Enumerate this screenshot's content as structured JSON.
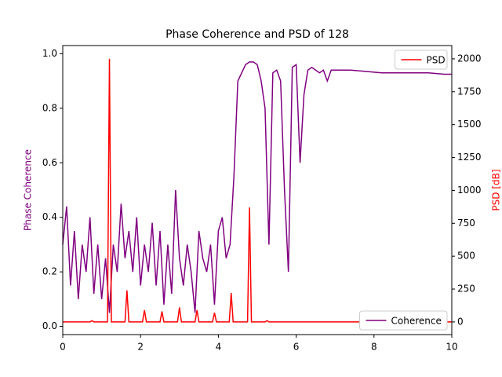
{
  "chart_data": {
    "type": "line",
    "title": "Phase Coherence and PSD of 128",
    "ylabel": "Phase Coherence",
    "y2label": "PSD [dB]",
    "ylabel_color": "#800080",
    "y2label_color": "#ff0000",
    "xlim": [
      0,
      10
    ],
    "xticks": [
      0,
      2,
      4,
      6,
      8,
      10
    ],
    "ylim": [
      -0.03,
      1.03
    ],
    "yticks": [
      {
        "value": 0,
        "label": "0.0"
      },
      0.2,
      0.4,
      0.6,
      0.8,
      {
        "value": 1,
        "label": "1.0"
      }
    ],
    "y2lim": [
      -96,
      2101
    ],
    "y2ticks": [
      0,
      250,
      500,
      750,
      1000,
      1250,
      1500,
      1750,
      2000
    ],
    "series": [
      {
        "name": "Coherence",
        "color": "#800080",
        "axis": "y",
        "legend": "lower right",
        "x": [
          0,
          0.1,
          0.2,
          0.3,
          0.4,
          0.5,
          0.6,
          0.7,
          0.8,
          0.9,
          1.0,
          1.1,
          1.2,
          1.3,
          1.4,
          1.5,
          1.6,
          1.7,
          1.8,
          1.9,
          2.0,
          2.1,
          2.2,
          2.3,
          2.4,
          2.5,
          2.6,
          2.7,
          2.8,
          2.9,
          3.0,
          3.1,
          3.2,
          3.3,
          3.4,
          3.5,
          3.6,
          3.7,
          3.8,
          3.9,
          4.0,
          4.1,
          4.2,
          4.3,
          4.4,
          4.5,
          4.6,
          4.7,
          4.8,
          4.9,
          5.0,
          5.1,
          5.2,
          5.3,
          5.4,
          5.5,
          5.6,
          5.7,
          5.8,
          5.9,
          6.0,
          6.1,
          6.2,
          6.3,
          6.4,
          6.5,
          6.6,
          6.7,
          6.8,
          6.9,
          7.0,
          7.4,
          7.8,
          8.2,
          8.6,
          9.0,
          9.4,
          9.8,
          10
        ],
        "values": [
          0.3,
          0.44,
          0.15,
          0.35,
          0.1,
          0.3,
          0.2,
          0.4,
          0.12,
          0.3,
          0.1,
          0.25,
          0.05,
          0.3,
          0.2,
          0.45,
          0.25,
          0.35,
          0.2,
          0.4,
          0.15,
          0.3,
          0.2,
          0.38,
          0.15,
          0.35,
          0.08,
          0.3,
          0.12,
          0.5,
          0.25,
          0.15,
          0.3,
          0.2,
          0.05,
          0.35,
          0.25,
          0.2,
          0.3,
          0.08,
          0.35,
          0.4,
          0.25,
          0.3,
          0.55,
          0.9,
          0.93,
          0.96,
          0.97,
          0.97,
          0.96,
          0.9,
          0.8,
          0.3,
          0.93,
          0.94,
          0.9,
          0.5,
          0.2,
          0.95,
          0.96,
          0.6,
          0.85,
          0.94,
          0.95,
          0.94,
          0.93,
          0.94,
          0.9,
          0.94,
          0.94,
          0.94,
          0.935,
          0.93,
          0.93,
          0.93,
          0.93,
          0.925,
          0.925
        ]
      },
      {
        "name": "PSD",
        "color": "#ff0000",
        "axis": "y2",
        "legend": "upper right",
        "x": [
          0,
          0.7,
          0.75,
          0.8,
          1.15,
          1.2,
          1.25,
          1.6,
          1.65,
          1.7,
          2.05,
          2.1,
          2.15,
          2.5,
          2.55,
          2.6,
          2.95,
          3.0,
          3.05,
          3.4,
          3.45,
          3.5,
          3.85,
          3.9,
          3.95,
          4.28,
          4.33,
          4.38,
          4.75,
          4.8,
          4.85,
          5.2,
          5.25,
          5.3,
          10
        ],
        "values": [
          0,
          0,
          10,
          0,
          0,
          2000,
          0,
          0,
          240,
          0,
          0,
          90,
          0,
          0,
          80,
          0,
          0,
          110,
          0,
          0,
          90,
          0,
          0,
          70,
          0,
          0,
          220,
          0,
          0,
          870,
          0,
          0,
          10,
          0,
          0
        ]
      }
    ]
  }
}
